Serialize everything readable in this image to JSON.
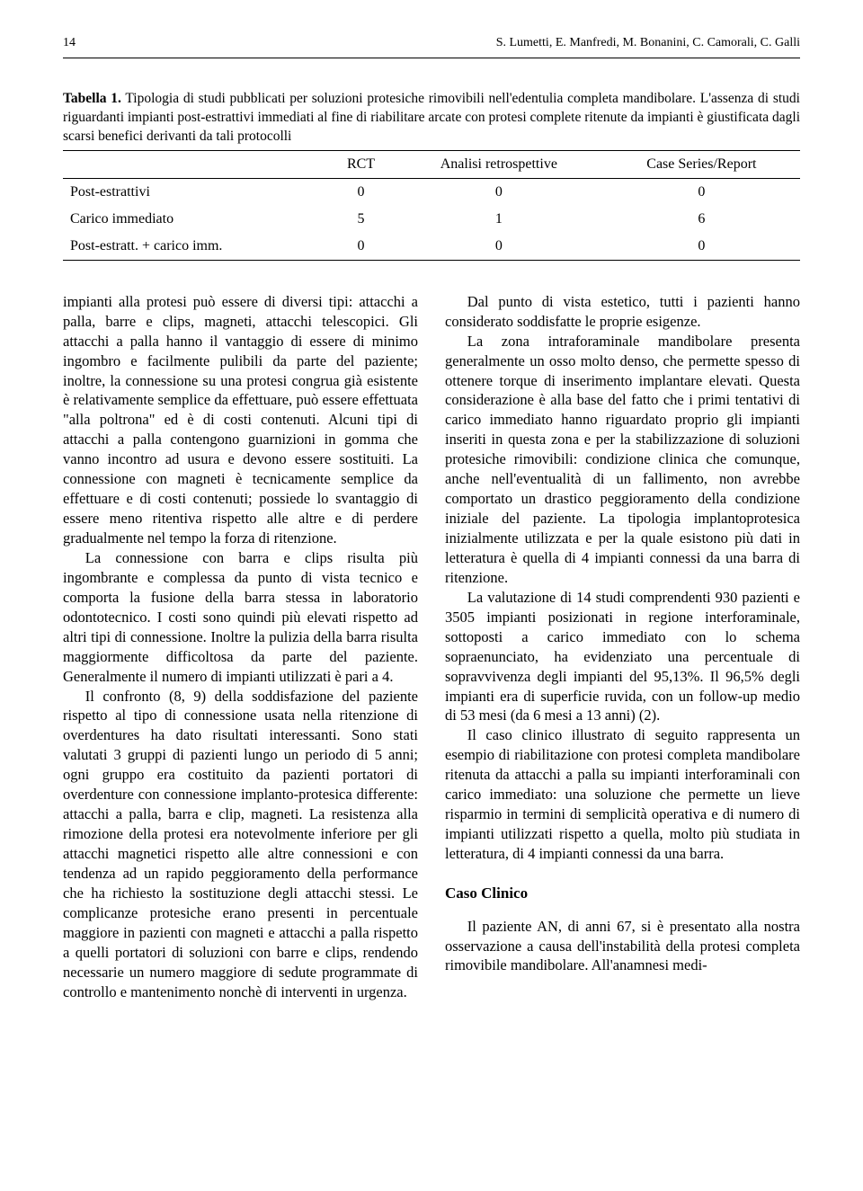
{
  "header": {
    "page_number": "14",
    "authors": "S. Lumetti, E. Manfredi, M. Bonanini, C. Camorali, C. Galli"
  },
  "table1": {
    "label": "Tabella 1.",
    "caption": "Tipologia di studi pubblicati per soluzioni protesiche rimovibili nell'edentulia completa mandibolare. L'assenza di studi riguardanti impianti post-estrattivi immediati al fine di riabilitare arcate con protesi complete ritenute da impianti è giustificata dagli scarsi benefici derivanti da tali protocolli",
    "columns": [
      "",
      "RCT",
      "Analisi retrospettive",
      "Case Series/Report"
    ],
    "rows": [
      [
        "Post-estrattivi",
        "0",
        "0",
        "0"
      ],
      [
        "Carico immediato",
        "5",
        "1",
        "6"
      ],
      [
        "Post-estratt. + carico imm.",
        "0",
        "0",
        "0"
      ]
    ]
  },
  "body": {
    "p1": "impianti alla protesi può essere di diversi tipi: attacchi a palla, barre e clips, magneti, attacchi telescopici. Gli attacchi a palla hanno il vantaggio di essere di minimo ingombro e facilmente pulibili da parte del paziente; inoltre, la connessione su una protesi congrua già esistente è relativamente semplice da effettuare, può essere effettuata \"alla poltrona\" ed è di costi contenuti. Alcuni tipi di attacchi a palla contengono guarnizioni in gomma che vanno incontro ad usura e devono essere sostituiti. La connessione con magneti è tecnicamente semplice da effettuare e di costi contenuti; possiede lo svantaggio di essere meno ritentiva rispetto alle altre e di perdere gradualmente nel tempo la forza di ritenzione.",
    "p2": "La connessione con barra e clips risulta più ingombrante e complessa da punto di vista tecnico e comporta la fusione della barra stessa in laboratorio odontotecnico. I costi sono quindi più elevati rispetto ad altri tipi di connessione. Inoltre la pulizia della barra risulta maggiormente difficoltosa da parte del paziente. Generalmente il numero di impianti utilizzati è pari a 4.",
    "p3": "Il confronto (8, 9) della soddisfazione del paziente rispetto al tipo di connessione usata nella ritenzione di overdentures ha dato risultati interessanti. Sono stati valutati 3 gruppi di pazienti lungo un periodo di 5 anni; ogni gruppo era costituito da pazienti portatori di overdenture con connessione implanto-protesica differente: attacchi a palla, barra e clip, magneti. La resistenza alla rimozione della protesi era notevolmente inferiore per gli attacchi magnetici rispetto alle altre connessioni e con tendenza ad un rapido peggioramento della performance che ha richiesto la sostituzione degli attacchi stessi. Le complicanze protesiche erano presenti in percentuale maggiore in pazienti con magneti e attacchi a palla rispetto a quelli portatori di soluzioni con barre e clips, rendendo necessarie un numero maggiore di sedute programmate di controllo e mantenimento nonchè di interventi in urgenza.",
    "p4": "Dal punto di vista estetico, tutti i pazienti hanno considerato soddisfatte le proprie esigenze.",
    "p5": "La zona intraforaminale mandibolare presenta generalmente un osso molto denso, che permette spesso di ottenere torque di inserimento implantare elevati. Questa considerazione è alla base del fatto che i primi tentativi di carico immediato hanno riguardato proprio gli impianti inseriti in questa zona e per la stabilizzazione di soluzioni protesiche rimovibili: condizione clinica che comunque, anche nell'eventualità di un fallimento, non avrebbe comportato un drastico peggioramento della condizione iniziale del paziente. La tipologia implantoprotesica inizialmente utilizzata e per la quale esistono più dati in letteratura è quella di 4 impianti connessi da una barra di ritenzione.",
    "p6": "La valutazione di 14 studi comprendenti 930 pazienti e 3505 impianti posizionati in regione interforaminale, sottoposti a carico immediato con lo schema sopraenunciato, ha evidenziato una percentuale di sopravvivenza degli impianti del 95,13%. Il 96,5% degli impianti era di superficie ruvida, con un follow-up medio di 53 mesi (da 6 mesi a 13 anni) (2).",
    "p7": "Il caso clinico illustrato di seguito rappresenta un esempio di riabilitazione con protesi completa mandibolare ritenuta da attacchi a palla su impianti interforaminali con carico immediato: una soluzione che permette un lieve risparmio in termini di semplicità operativa e di numero di impianti utilizzati rispetto a quella, molto più studiata in letteratura, di 4 impianti connessi da una barra.",
    "h_caso": "Caso Clinico",
    "p8": "Il paziente AN, di anni 67, si è presentato alla nostra osservazione a causa dell'instabilità della protesi completa rimovibile mandibolare. All'anamnesi medi-"
  }
}
